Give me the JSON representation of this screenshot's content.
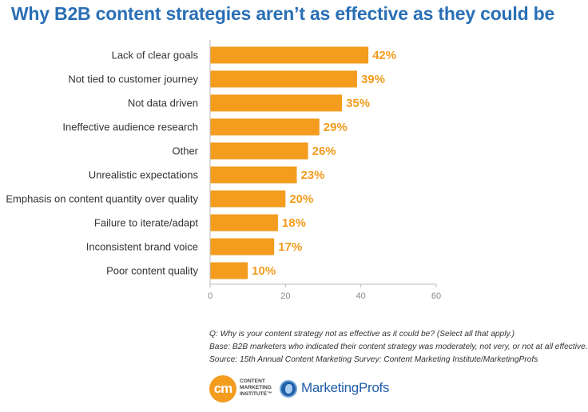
{
  "chart_data": {
    "type": "bar",
    "orientation": "horizontal",
    "title": "Why B2B content strategies aren’t as effective as they could be",
    "categories": [
      "Lack of clear goals",
      "Not tied to customer journey",
      "Not data driven",
      "Ineffective audience research",
      "Other",
      "Unrealistic expectations",
      "Emphasis on content quantity over quality",
      "Failure to iterate/adapt",
      "Inconsistent brand voice",
      "Poor content quality"
    ],
    "values": [
      42,
      39,
      35,
      29,
      26,
      23,
      20,
      18,
      17,
      10
    ],
    "value_labels": [
      "42%",
      "39%",
      "35%",
      "29%",
      "26%",
      "23%",
      "20%",
      "18%",
      "17%",
      "10%"
    ],
    "xlim": [
      0,
      60
    ],
    "xticks": [
      0,
      20,
      40,
      60
    ],
    "xlabel": "",
    "ylabel": "",
    "grid": false,
    "colors": {
      "bar": "#f39c1e",
      "value_label": "#f39c1e",
      "title": "#2a6fb5",
      "axis": "#bbbbbb"
    }
  },
  "notes": {
    "question": "Q: Why is your content strategy not as effective as it could be? (Select all that apply.)",
    "base": "Base: B2B marketers who indicated their content strategy was moderately, not very, or not at all effective.",
    "source": "Source: 15th Annual Content Marketing Survey: Content Marketing Institute/MarketingProfs"
  },
  "logos": {
    "cmi_mark": "cm",
    "cmi_lines": [
      "CONTENT",
      "MARKETING",
      "INSTITUTE™"
    ],
    "marketingprofs": "MarketingProfs"
  }
}
